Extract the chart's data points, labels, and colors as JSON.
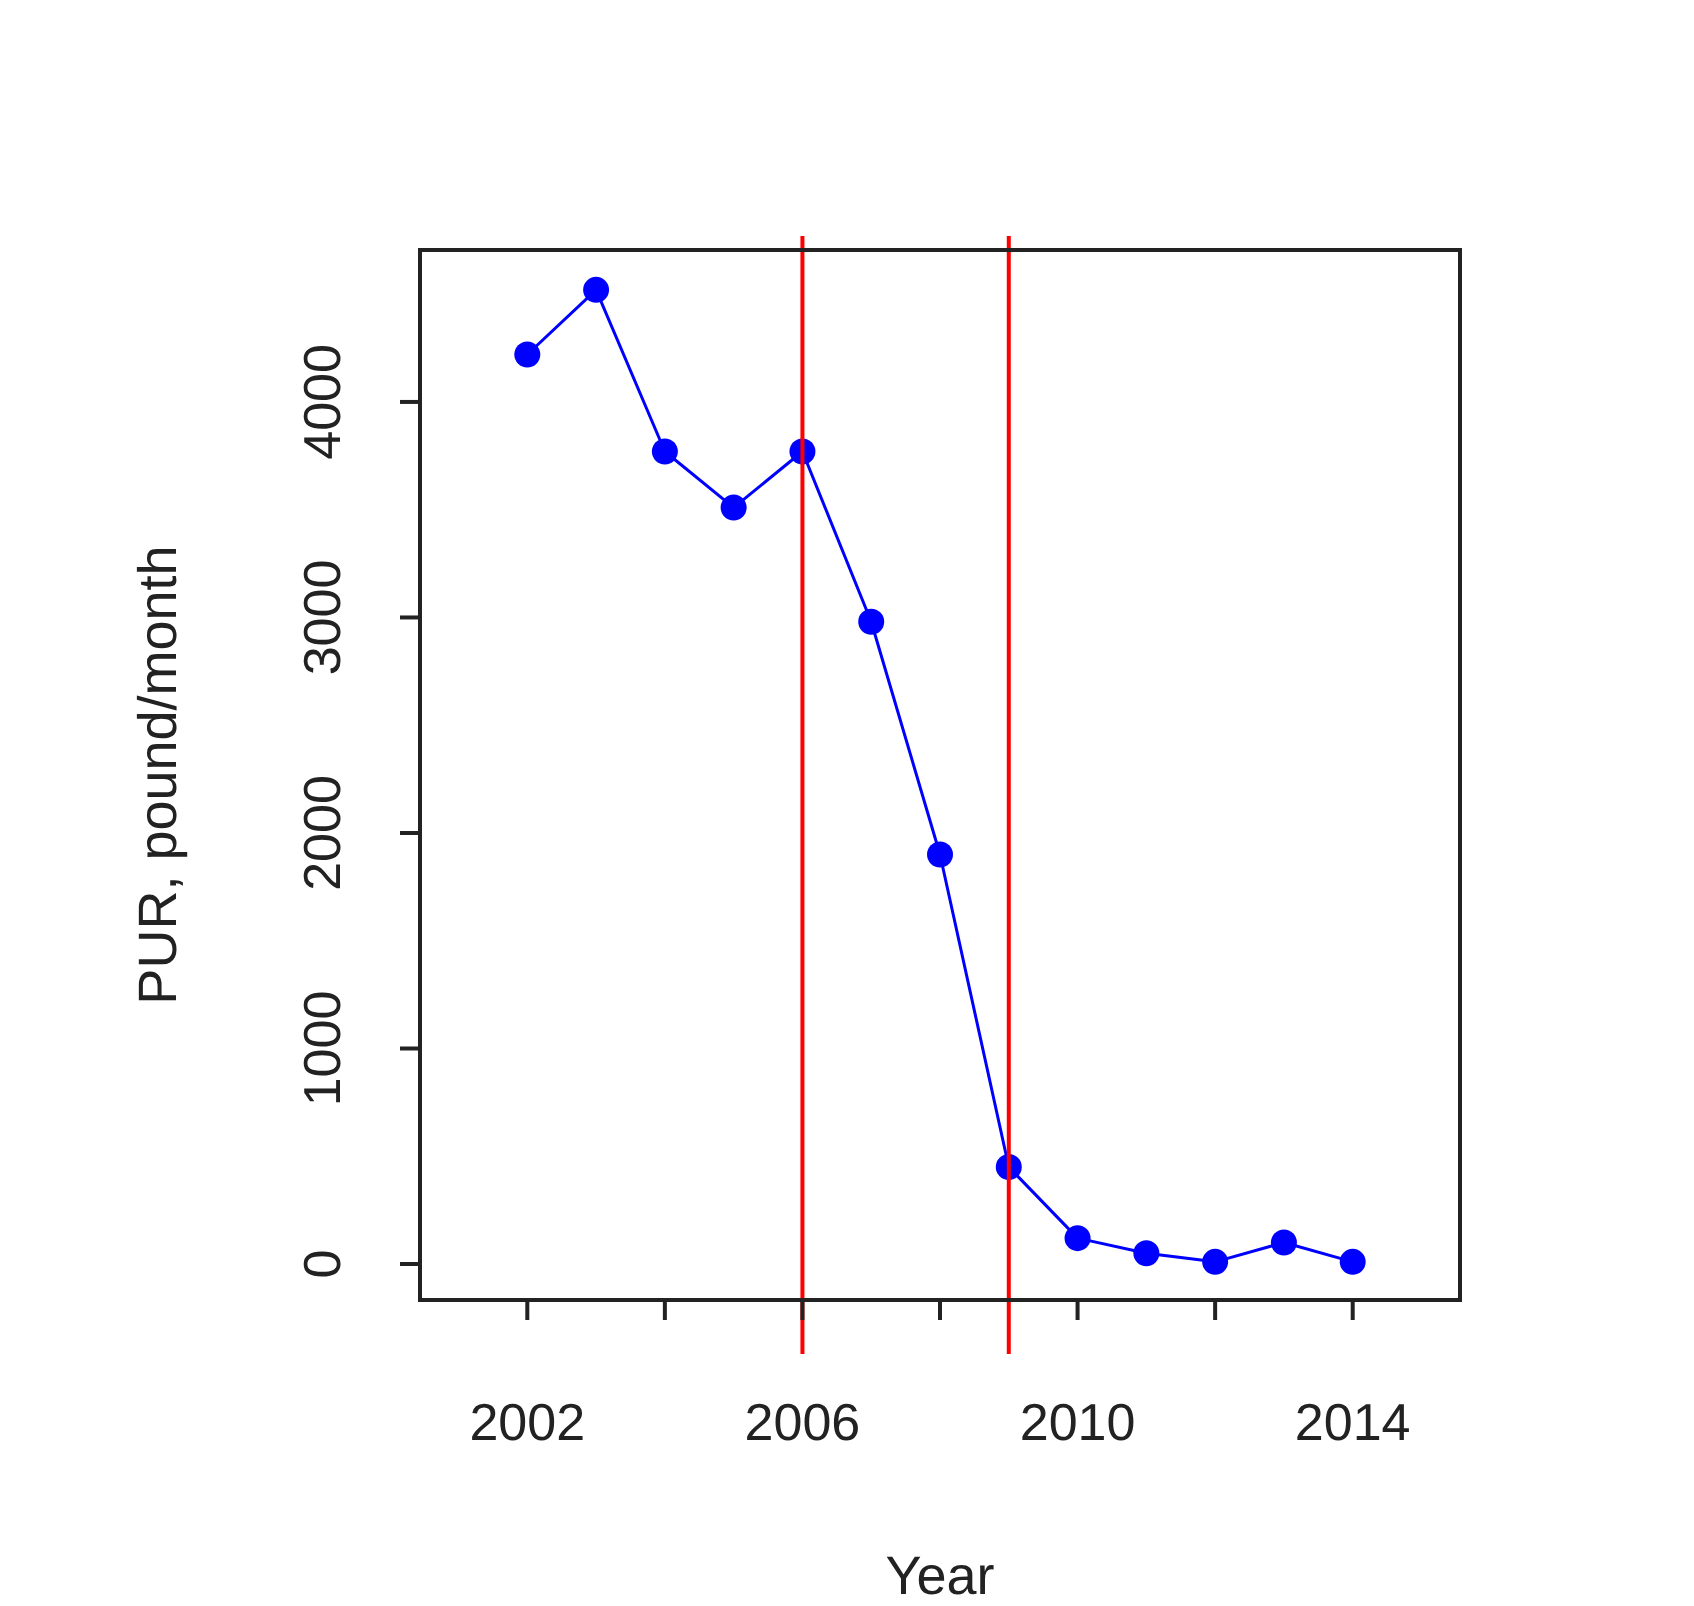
{
  "chart_data": {
    "type": "line",
    "xlabel": "Year",
    "ylabel": "PUR, pound/month",
    "x": [
      2002,
      2003,
      2004,
      2005,
      2006,
      2007,
      2008,
      2009,
      2010,
      2011,
      2012,
      2013,
      2014
    ],
    "series": [
      {
        "color": "#0000ff",
        "values": [
          4220,
          4520,
          3770,
          3510,
          3770,
          2980,
          1900,
          450,
          120,
          50,
          10,
          100,
          10
        ]
      }
    ],
    "xlim": [
      2000.44,
      2015.56
    ],
    "xticks": [
      2002,
      {
        "value": 2004,
        "label": null
      },
      2006,
      {
        "value": 2008,
        "label": null
      },
      2010,
      {
        "value": 2012,
        "label": null
      },
      2014
    ],
    "ylim": [
      -167,
      4705
    ],
    "yticks": [
      0,
      1000,
      2000,
      3000,
      4000
    ],
    "ref_lines": [
      {
        "axis": "x",
        "value": 2006,
        "color": "#ff0000"
      },
      {
        "axis": "x",
        "value": 2009,
        "color": "#ff0000"
      }
    ],
    "marker": "circle",
    "line_style": "solid"
  }
}
